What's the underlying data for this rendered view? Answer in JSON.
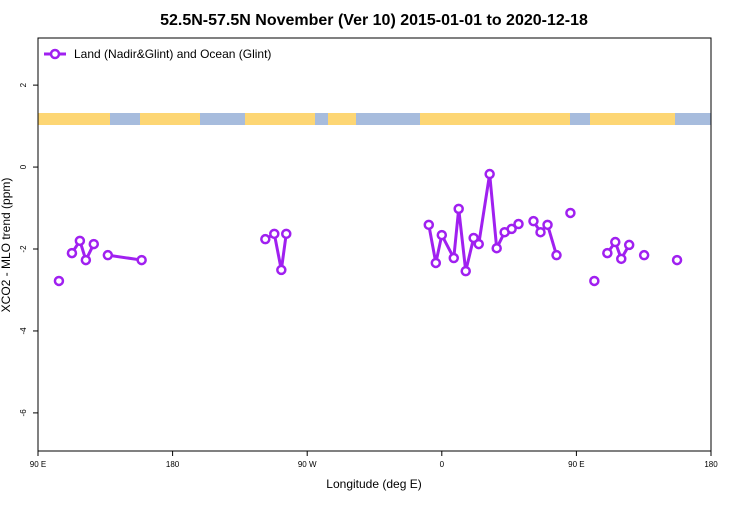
{
  "chart_data": {
    "type": "line",
    "title": "52.5N-57.5N November (Ver 10)   2015-01-01 to 2020-12-18",
    "x_label": "Longitude (deg E)",
    "y_label": "XCO2 - MLO trend (ppm)",
    "legend_position": "top-left",
    "xlim": [
      90,
      540
    ],
    "ylim": [
      -6.93,
      3.15
    ],
    "xticks": [
      {
        "value": 90,
        "label": "90 E"
      },
      180,
      {
        "value": 270,
        "label": "90 W"
      },
      {
        "value": 360,
        "label": "0"
      },
      {
        "value": 450,
        "label": "90 E"
      },
      {
        "value": 540,
        "label": "180"
      }
    ],
    "yticks": [
      -6,
      -4,
      -2,
      0,
      2
    ],
    "series": [
      {
        "name": "Land (Nadir&Glint) and Ocean (Glint)",
        "color": "#a020f0",
        "x": [
          104,
          null,
          112.7,
          118,
          122,
          127.3,
          null,
          136.7,
          159.3,
          null,
          242,
          248,
          252.7,
          256,
          null,
          351.3,
          356,
          360,
          368,
          371.3,
          376,
          381.3,
          384.7,
          392,
          396.7,
          402,
          406.7,
          411.3,
          null,
          421.3,
          426,
          430.7,
          436.7,
          null,
          446,
          null,
          462,
          null,
          470.7,
          476,
          480,
          485.3,
          null,
          495.3,
          null,
          517.3
        ],
        "values": [
          -2.78,
          null,
          -2.1,
          -1.8,
          -2.27,
          -1.88,
          null,
          -2.15,
          -2.27,
          null,
          -1.76,
          -1.63,
          -2.51,
          -1.63,
          null,
          -1.41,
          -2.34,
          -1.66,
          -2.22,
          -1.02,
          -2.54,
          -1.73,
          -1.88,
          -0.17,
          -1.98,
          -1.59,
          -1.51,
          -1.39,
          null,
          -1.32,
          -1.59,
          -1.41,
          -2.15,
          null,
          -1.12,
          null,
          -2.78,
          null,
          -2.1,
          -1.83,
          -2.24,
          -1.9,
          null,
          -2.15,
          null,
          -2.27
        ]
      }
    ]
  }
}
